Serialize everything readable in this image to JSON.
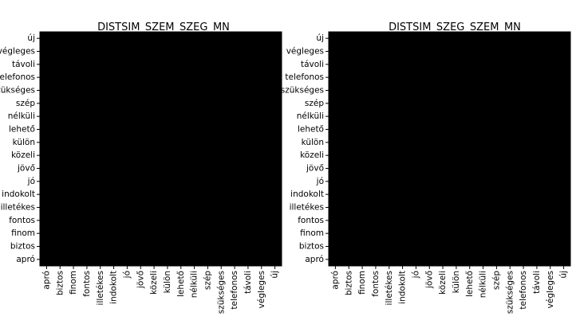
{
  "chart_data": [
    {
      "type": "heatmap",
      "title": "DISTSIM_SZEM_SZEG_MN",
      "x_labels": [
        "apró",
        "biztos",
        "finom",
        "fontos",
        "illetékes",
        "indokolt",
        "jó",
        "jövő",
        "közeli",
        "külön",
        "lehető",
        "nélküli",
        "szép",
        "szükséges",
        "telefonos",
        "távoli",
        "végleges",
        "új"
      ],
      "y_labels_top_to_bottom": [
        "új",
        "végleges",
        "távoli",
        "telefonos",
        "szükséges",
        "szép",
        "nélküli",
        "lehető",
        "külön",
        "közeli",
        "jövő",
        "jó",
        "indokolt",
        "illetékes",
        "fontos",
        "finom",
        "biztos",
        "apró"
      ],
      "colormap": "gray",
      "value_range": [
        0,
        1
      ],
      "grid": false,
      "values": [
        [
          0.0,
          0.0,
          0.0,
          0.0,
          0.0,
          0.0,
          0.0,
          0.0,
          0.0,
          0.0,
          0.0,
          0.0,
          0.0,
          0.0,
          0.0,
          0.0,
          0.0,
          0.0
        ],
        [
          0.0,
          0.0,
          0.0,
          0.0,
          0.0,
          0.0,
          0.0,
          0.0,
          0.0,
          0.0,
          0.0,
          0.0,
          0.0,
          0.0,
          0.0,
          0.0,
          0.0,
          0.0
        ],
        [
          0.0,
          0.0,
          0.0,
          0.0,
          0.0,
          0.0,
          0.0,
          0.0,
          0.0,
          0.0,
          0.0,
          0.0,
          0.0,
          0.0,
          0.0,
          0.0,
          0.0,
          0.0
        ],
        [
          0.0,
          0.0,
          0.0,
          0.0,
          0.0,
          0.0,
          0.0,
          0.0,
          0.0,
          0.0,
          0.0,
          0.0,
          0.0,
          0.0,
          0.0,
          0.0,
          0.0,
          0.0
        ],
        [
          0.0,
          0.0,
          0.0,
          0.0,
          0.0,
          0.0,
          0.0,
          0.0,
          0.0,
          0.0,
          0.0,
          0.0,
          0.0,
          0.0,
          0.0,
          0.0,
          0.0,
          0.0
        ],
        [
          0.0,
          0.0,
          0.0,
          0.0,
          0.0,
          0.0,
          0.0,
          0.0,
          0.0,
          0.0,
          0.0,
          0.0,
          0.0,
          0.0,
          0.0,
          0.0,
          0.0,
          0.0
        ],
        [
          0.0,
          0.0,
          0.0,
          0.0,
          0.0,
          0.0,
          0.0,
          0.0,
          0.0,
          0.0,
          0.0,
          0.0,
          0.0,
          0.0,
          0.0,
          0.0,
          0.0,
          0.0
        ],
        [
          0.0,
          0.0,
          0.0,
          0.0,
          0.0,
          0.0,
          0.0,
          0.0,
          0.0,
          0.0,
          0.0,
          0.0,
          0.0,
          0.0,
          0.0,
          0.0,
          0.0,
          0.0
        ],
        [
          0.0,
          0.0,
          0.0,
          0.0,
          0.0,
          0.0,
          0.0,
          0.0,
          0.0,
          0.0,
          0.0,
          0.0,
          0.0,
          0.0,
          0.0,
          0.0,
          0.0,
          0.0
        ],
        [
          0.0,
          0.0,
          0.0,
          0.0,
          0.0,
          0.0,
          0.0,
          0.0,
          0.0,
          0.0,
          0.0,
          0.0,
          0.0,
          0.0,
          0.0,
          0.0,
          0.0,
          0.0
        ],
        [
          0.0,
          0.0,
          0.0,
          0.0,
          0.0,
          0.0,
          0.0,
          0.0,
          0.0,
          0.0,
          0.0,
          0.0,
          0.0,
          0.0,
          0.0,
          0.0,
          0.0,
          0.0
        ],
        [
          0.0,
          0.0,
          0.0,
          0.0,
          0.0,
          0.0,
          0.0,
          0.0,
          0.0,
          0.0,
          0.0,
          0.0,
          0.0,
          0.0,
          0.0,
          0.0,
          0.0,
          0.0
        ],
        [
          0.0,
          0.0,
          0.0,
          0.0,
          0.0,
          0.0,
          0.0,
          0.0,
          0.0,
          0.0,
          0.0,
          0.0,
          0.0,
          0.0,
          0.0,
          0.0,
          0.0,
          0.0
        ],
        [
          0.0,
          0.0,
          0.0,
          0.0,
          0.0,
          0.0,
          0.0,
          0.0,
          0.0,
          0.0,
          0.0,
          0.0,
          0.0,
          0.0,
          0.0,
          0.0,
          0.0,
          0.0
        ],
        [
          0.0,
          0.0,
          0.0,
          0.0,
          0.0,
          0.0,
          0.0,
          0.0,
          0.0,
          0.0,
          0.0,
          0.0,
          0.0,
          0.0,
          0.0,
          0.0,
          0.0,
          0.0
        ],
        [
          0.0,
          0.0,
          0.0,
          0.0,
          0.0,
          0.0,
          0.0,
          0.0,
          0.0,
          0.0,
          0.0,
          0.0,
          0.0,
          0.0,
          0.0,
          0.0,
          0.0,
          0.0
        ],
        [
          0.0,
          0.0,
          0.0,
          0.0,
          0.0,
          0.0,
          0.0,
          0.0,
          0.0,
          0.0,
          0.0,
          0.0,
          0.0,
          0.0,
          0.0,
          0.0,
          0.0,
          0.0
        ],
        [
          0.0,
          0.0,
          0.0,
          0.0,
          0.0,
          0.0,
          0.0,
          0.0,
          0.0,
          0.0,
          0.0,
          0.0,
          0.0,
          0.0,
          0.0,
          0.0,
          0.0,
          0.0
        ]
      ]
    },
    {
      "type": "heatmap",
      "title": "DISTSIM_SZEG_SZEM_MN",
      "x_labels": [
        "apró",
        "biztos",
        "finom",
        "fontos",
        "illetékes",
        "indokolt",
        "jó",
        "jövő",
        "közeli",
        "külön",
        "lehető",
        "nélküli",
        "szép",
        "szükséges",
        "telefonos",
        "távoli",
        "végleges",
        "új"
      ],
      "y_labels_top_to_bottom": [
        "új",
        "végleges",
        "távoli",
        "telefonos",
        "szükséges",
        "szép",
        "nélküli",
        "lehető",
        "külön",
        "közeli",
        "jövő",
        "jó",
        "indokolt",
        "illetékes",
        "fontos",
        "finom",
        "biztos",
        "apró"
      ],
      "colormap": "gray",
      "value_range": [
        0,
        1
      ],
      "grid": false,
      "values": [
        [
          0.0,
          0.0,
          0.0,
          0.0,
          0.0,
          0.0,
          0.0,
          0.0,
          0.0,
          0.0,
          0.0,
          0.0,
          0.0,
          0.0,
          0.0,
          0.0,
          0.0,
          0.0
        ],
        [
          0.0,
          0.0,
          0.0,
          0.0,
          0.0,
          0.0,
          0.0,
          0.0,
          0.0,
          0.0,
          0.0,
          0.0,
          0.0,
          0.0,
          0.0,
          0.0,
          0.0,
          0.0
        ],
        [
          0.0,
          0.0,
          0.0,
          0.0,
          0.0,
          0.0,
          0.0,
          0.0,
          0.0,
          0.0,
          0.0,
          0.0,
          0.0,
          0.0,
          0.0,
          0.0,
          0.0,
          0.0
        ],
        [
          0.0,
          0.0,
          0.0,
          0.0,
          0.0,
          0.0,
          0.0,
          0.0,
          0.0,
          0.0,
          0.0,
          0.0,
          0.0,
          0.0,
          0.0,
          0.0,
          0.0,
          0.0
        ],
        [
          0.0,
          0.0,
          0.0,
          0.0,
          0.0,
          0.0,
          0.0,
          0.0,
          0.0,
          0.0,
          0.0,
          0.0,
          0.0,
          0.0,
          0.0,
          0.0,
          0.0,
          0.0
        ],
        [
          0.0,
          0.0,
          0.0,
          0.0,
          0.0,
          0.0,
          0.0,
          0.0,
          0.0,
          0.0,
          0.0,
          0.0,
          0.0,
          0.0,
          0.0,
          0.0,
          0.0,
          0.0
        ],
        [
          0.0,
          0.0,
          0.0,
          0.0,
          0.0,
          0.0,
          0.0,
          0.0,
          0.0,
          0.0,
          0.0,
          0.0,
          0.0,
          0.0,
          0.0,
          0.0,
          0.0,
          0.0
        ],
        [
          0.0,
          0.0,
          0.0,
          0.0,
          0.0,
          0.0,
          0.0,
          0.0,
          0.0,
          0.0,
          0.0,
          0.0,
          0.0,
          0.0,
          0.0,
          0.0,
          0.0,
          0.0
        ],
        [
          0.0,
          0.0,
          0.0,
          0.0,
          0.0,
          0.0,
          0.0,
          0.0,
          0.0,
          0.0,
          0.0,
          0.0,
          0.0,
          0.0,
          0.0,
          0.0,
          0.0,
          0.0
        ],
        [
          0.0,
          0.0,
          0.0,
          0.0,
          0.0,
          0.0,
          0.0,
          0.0,
          0.0,
          0.0,
          0.0,
          0.0,
          0.0,
          0.0,
          0.0,
          0.0,
          0.0,
          0.0
        ],
        [
          0.0,
          0.0,
          0.0,
          0.0,
          0.0,
          0.0,
          0.0,
          0.0,
          0.0,
          0.0,
          0.0,
          0.0,
          0.0,
          0.0,
          0.0,
          0.0,
          0.0,
          0.0
        ],
        [
          0.0,
          0.0,
          0.0,
          0.0,
          0.0,
          0.0,
          0.0,
          0.0,
          0.0,
          0.0,
          0.0,
          0.0,
          0.0,
          0.0,
          0.0,
          0.0,
          0.0,
          0.0
        ],
        [
          0.0,
          0.0,
          0.0,
          0.0,
          0.0,
          0.0,
          0.0,
          0.0,
          0.0,
          0.0,
          0.0,
          0.0,
          0.0,
          0.0,
          0.0,
          0.0,
          0.0,
          0.0
        ],
        [
          0.0,
          0.0,
          0.0,
          0.0,
          0.0,
          0.0,
          0.0,
          0.0,
          0.0,
          0.0,
          0.0,
          0.0,
          0.0,
          0.0,
          0.0,
          0.0,
          0.0,
          0.0
        ],
        [
          0.0,
          0.0,
          0.0,
          0.0,
          0.0,
          0.0,
          0.0,
          0.0,
          0.0,
          0.0,
          0.0,
          0.0,
          0.0,
          0.0,
          0.0,
          0.0,
          0.0,
          0.0
        ],
        [
          0.0,
          0.0,
          0.0,
          0.0,
          0.0,
          0.0,
          0.0,
          0.0,
          0.0,
          0.0,
          0.0,
          0.0,
          0.0,
          0.0,
          0.0,
          0.0,
          0.0,
          0.0
        ],
        [
          0.0,
          0.0,
          0.0,
          0.0,
          0.0,
          0.0,
          0.0,
          0.0,
          0.0,
          0.0,
          0.0,
          0.0,
          0.0,
          0.0,
          0.0,
          0.0,
          0.0,
          0.0
        ],
        [
          0.0,
          0.0,
          0.0,
          0.0,
          0.0,
          0.0,
          0.0,
          0.0,
          0.0,
          0.0,
          0.0,
          0.0,
          0.0,
          0.0,
          0.0,
          0.0,
          0.0,
          0.0
        ]
      ]
    }
  ]
}
